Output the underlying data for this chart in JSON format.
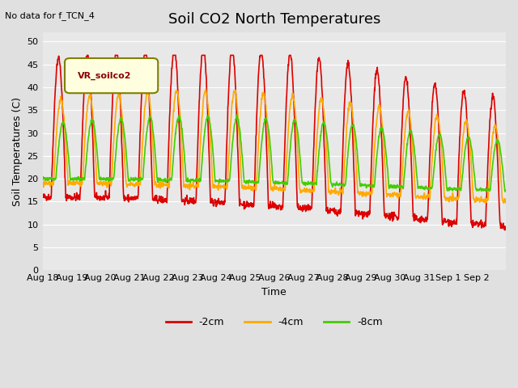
{
  "title": "Soil CO2 North Temperatures",
  "subtitle": "No data for f_TCN_4",
  "xlabel": "Time",
  "ylabel": "Soil Temperatures (C)",
  "ylim": [
    0,
    52
  ],
  "yticks": [
    0,
    5,
    10,
    15,
    20,
    25,
    30,
    35,
    40,
    45,
    50
  ],
  "date_labels": [
    "Aug 18",
    "Aug 19",
    "Aug 20",
    "Aug 21",
    "Aug 22",
    "Aug 23",
    "Aug 24",
    "Aug 25",
    "Aug 26",
    "Aug 27",
    "Aug 28",
    "Aug 29",
    "Aug 30",
    "Aug 31",
    "Sep 1",
    "Sep 2"
  ],
  "legend_label": "VR_soilco2",
  "line_labels": [
    "-2cm",
    "-4cm",
    "-8cm"
  ],
  "line_colors": [
    "#dd0000",
    "#ffaa00",
    "#44cc00"
  ],
  "background_color": "#e0e0e0",
  "plot_background": "#e8e8e8",
  "n_days": 16
}
